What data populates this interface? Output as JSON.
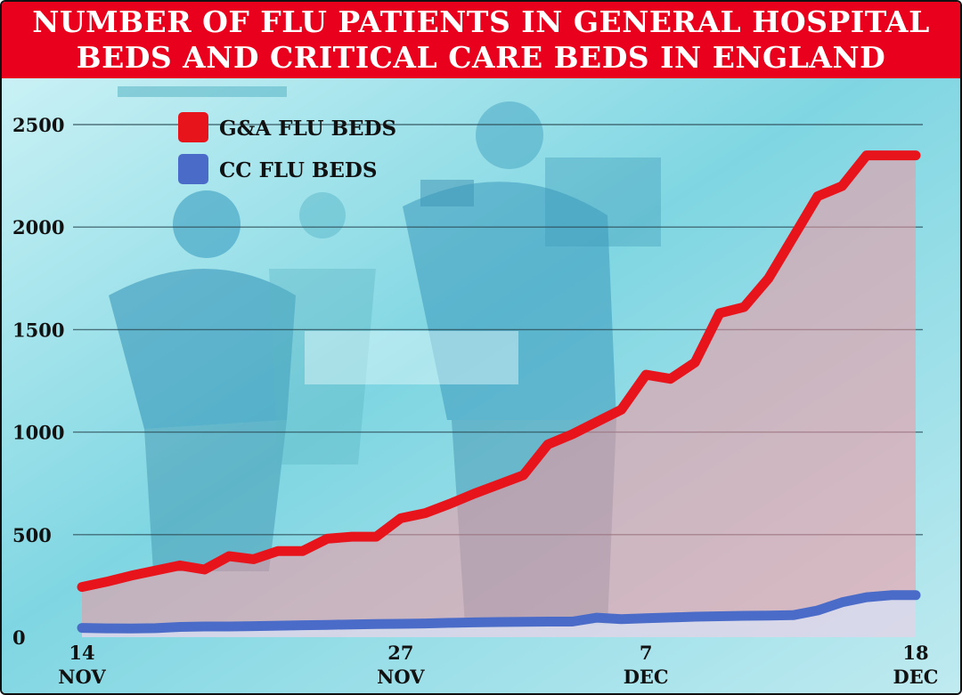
{
  "title": {
    "line1": "NUMBER OF FLU PATIENTS IN GENERAL HOSPITAL",
    "line2": "BEDS AND CRITICAL CARE BEDS IN ENGLAND"
  },
  "colors": {
    "title_bg": "#e8001c",
    "ga_line": "#e8141c",
    "cc_line": "#4a6cc8",
    "photo_tint": "#8fdde6"
  },
  "chart_data": {
    "type": "area",
    "title": "NUMBER OF FLU PATIENTS IN GENERAL HOSPITAL BEDS AND CRITICAL CARE BEDS IN ENGLAND",
    "x": [
      "14 Nov",
      "15 Nov",
      "16 Nov",
      "17 Nov",
      "18 Nov",
      "19 Nov",
      "20 Nov",
      "21 Nov",
      "22 Nov",
      "23 Nov",
      "24 Nov",
      "25 Nov",
      "26 Nov",
      "27 Nov",
      "28 Nov",
      "29 Nov",
      "30 Nov",
      "1 Dec",
      "2 Dec",
      "3 Dec",
      "4 Dec",
      "5 Dec",
      "6 Dec",
      "7 Dec",
      "8 Dec",
      "9 Dec",
      "10 Dec",
      "11 Dec",
      "12 Dec",
      "13 Dec",
      "14 Dec",
      "15 Dec",
      "16 Dec",
      "17 Dec",
      "18 Dec"
    ],
    "x_ticks": [
      {
        "day": "14",
        "month": "NOV",
        "index": 0
      },
      {
        "day": "27",
        "month": "NOV",
        "index": 13
      },
      {
        "day": "7",
        "month": "DEC",
        "index": 23
      },
      {
        "day": "18",
        "month": "DEC",
        "index": 34
      }
    ],
    "y_ticks": [
      0,
      500,
      1000,
      1500,
      2000,
      2500
    ],
    "ylim": [
      0,
      2650
    ],
    "grid": true,
    "legend_position": "top-left",
    "series": [
      {
        "name": "G&A FLU BEDS",
        "color": "#e8141c",
        "values": [
          245,
          270,
          300,
          325,
          350,
          330,
          395,
          380,
          420,
          420,
          480,
          490,
          490,
          580,
          605,
          650,
          700,
          745,
          790,
          940,
          990,
          1050,
          1110,
          1280,
          1260,
          1340,
          1580,
          1610,
          1750,
          1950,
          2150,
          2200,
          2350,
          2350,
          2350
        ]
      },
      {
        "name": "CC FLU BEDS",
        "color": "#4a6cc8",
        "values": [
          45,
          43,
          42,
          44,
          50,
          52,
          52,
          54,
          56,
          58,
          60,
          62,
          64,
          65,
          67,
          70,
          72,
          74,
          75,
          76,
          76,
          95,
          88,
          92,
          96,
          100,
          102,
          104,
          105,
          107,
          130,
          170,
          195,
          205,
          205
        ]
      }
    ]
  }
}
